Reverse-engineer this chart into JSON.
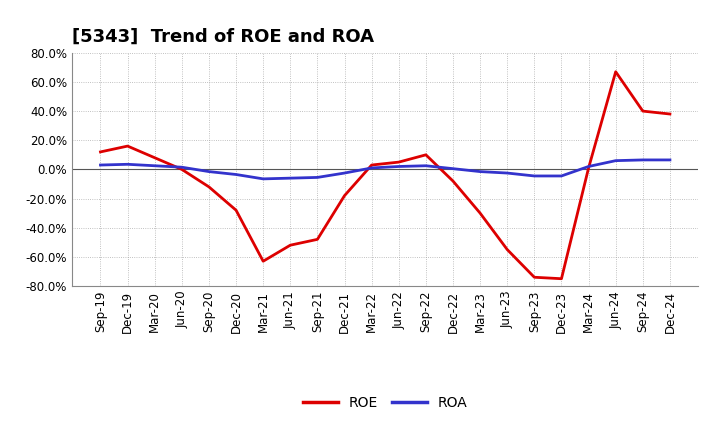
{
  "title": "[5343]  Trend of ROE and ROA",
  "x_labels": [
    "Sep-19",
    "Dec-19",
    "Mar-20",
    "Jun-20",
    "Sep-20",
    "Dec-20",
    "Mar-21",
    "Jun-21",
    "Sep-21",
    "Dec-21",
    "Mar-22",
    "Jun-22",
    "Sep-22",
    "Dec-22",
    "Mar-23",
    "Jun-23",
    "Sep-23",
    "Dec-23",
    "Mar-24",
    "Jun-24",
    "Sep-24",
    "Dec-24"
  ],
  "roe": [
    12.0,
    16.0,
    8.0,
    0.0,
    -12.0,
    -28.0,
    -63.0,
    -52.0,
    -48.0,
    -18.0,
    3.0,
    5.0,
    10.0,
    -8.0,
    -30.0,
    -55.0,
    -74.0,
    -75.0,
    1.0,
    67.0,
    40.0,
    38.0
  ],
  "roa": [
    3.0,
    3.5,
    2.5,
    1.5,
    -1.5,
    -3.5,
    -6.5,
    -6.0,
    -5.5,
    -2.5,
    1.0,
    2.0,
    2.5,
    0.5,
    -1.5,
    -2.5,
    -4.5,
    -4.5,
    2.0,
    6.0,
    6.5,
    6.5
  ],
  "roe_color": "#dd0000",
  "roa_color": "#3333cc",
  "background_color": "#ffffff",
  "grid_color": "#999999",
  "ylim_min": -80,
  "ylim_max": 80,
  "ytick_step": 20,
  "legend_labels": [
    "ROE",
    "ROA"
  ],
  "title_fontsize": 13,
  "axis_fontsize": 8.5,
  "legend_fontsize": 10,
  "line_width": 2.0
}
